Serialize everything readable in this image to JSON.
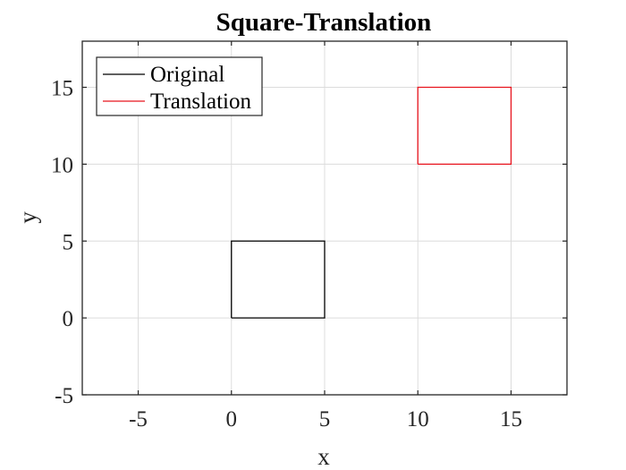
{
  "chart_data": {
    "type": "line",
    "title": "Square-Translation",
    "xlabel": "x",
    "ylabel": "y",
    "xlim": [
      -8,
      18
    ],
    "ylim": [
      -5,
      18
    ],
    "xticks": [
      -5,
      0,
      5,
      10,
      15
    ],
    "yticks": [
      -5,
      0,
      5,
      10,
      15
    ],
    "xtick_labels": [
      "-5",
      "0",
      "5",
      "10",
      "15"
    ],
    "ytick_labels": [
      "-5",
      "0",
      "5",
      "10",
      "15"
    ],
    "grid": true,
    "legend_position": "top-left",
    "series": [
      {
        "name": "Original",
        "color": "#000000",
        "x": [
          0,
          5,
          5,
          0,
          0
        ],
        "y": [
          0,
          0,
          5,
          5,
          0
        ]
      },
      {
        "name": "Translation",
        "color": "#e8141e",
        "x": [
          10,
          15,
          15,
          10,
          10
        ],
        "y": [
          10,
          10,
          15,
          15,
          10
        ]
      }
    ]
  }
}
